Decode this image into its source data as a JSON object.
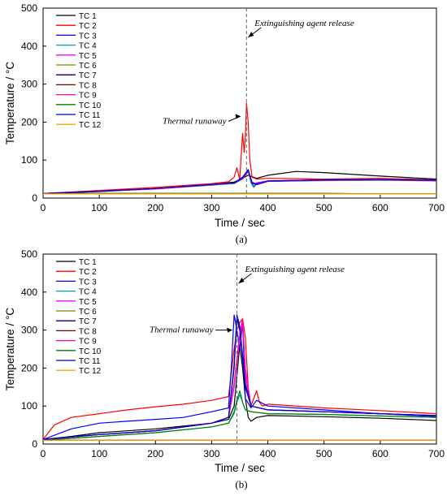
{
  "chart_data": [
    {
      "type": "line",
      "panel_caption": "(a)",
      "xlabel": "Time / sec",
      "ylabel": "Temperature / °C",
      "xlim": [
        0,
        700
      ],
      "ylim": [
        0,
        500
      ],
      "xticks": [
        0,
        100,
        200,
        300,
        400,
        500,
        600,
        700
      ],
      "yticks": [
        0,
        100,
        200,
        300,
        400,
        500
      ],
      "grid": false,
      "legend_position": "top-left",
      "annotations": [
        {
          "text": "Extinguishing agent release",
          "x": 362
        },
        {
          "text": "Thermal runaway",
          "x": 355,
          "y": 215
        }
      ],
      "series": [
        {
          "name": "TC 1",
          "color": "#000000",
          "x": [
            0,
            100,
            200,
            300,
            340,
            355,
            365,
            380,
            400,
            450,
            500,
            600,
            700
          ],
          "y": [
            12,
            17,
            25,
            36,
            42,
            52,
            60,
            52,
            60,
            70,
            67,
            58,
            50
          ]
        },
        {
          "name": "TC 2",
          "color": "#ff0000",
          "x": [
            0,
            100,
            200,
            300,
            330,
            340,
            345,
            350,
            352,
            355,
            358,
            360,
            362,
            365,
            368,
            372,
            380,
            400,
            500,
            600,
            700
          ],
          "y": [
            12,
            20,
            28,
            38,
            43,
            55,
            80,
            48,
            100,
            170,
            120,
            160,
            250,
            200,
            100,
            55,
            50,
            52,
            50,
            52,
            48
          ]
        },
        {
          "name": "TC 3",
          "color": "#0000ff",
          "x": [
            0,
            100,
            200,
            300,
            340,
            355,
            365,
            370,
            375,
            380,
            400,
            500,
            600,
            700
          ],
          "y": [
            12,
            18,
            25,
            36,
            40,
            55,
            75,
            45,
            30,
            40,
            45,
            48,
            48,
            46
          ]
        },
        {
          "name": "TC 4",
          "color": "#00a0a0",
          "x": [
            0,
            100,
            200,
            300,
            340,
            355,
            365,
            370,
            375,
            380,
            400,
            500,
            600,
            700
          ],
          "y": [
            12,
            18,
            24,
            34,
            38,
            50,
            70,
            40,
            28,
            38,
            44,
            46,
            47,
            45
          ]
        },
        {
          "name": "TC 5",
          "color": "#ff00ff",
          "x": [
            0,
            100,
            200,
            300,
            340,
            355,
            365,
            372,
            380,
            400,
            500,
            600,
            700
          ],
          "y": [
            12,
            18,
            25,
            36,
            40,
            52,
            72,
            42,
            38,
            45,
            48,
            49,
            47
          ]
        },
        {
          "name": "TC 6",
          "color": "#808000",
          "x": [
            0,
            100,
            200,
            300,
            400,
            500,
            600,
            700
          ],
          "y": [
            12,
            12,
            12,
            12,
            12,
            12,
            11,
            11
          ]
        },
        {
          "name": "TC 7",
          "color": "#000080",
          "x": [
            0,
            100,
            200,
            300,
            340,
            355,
            365,
            372,
            380,
            400,
            500,
            600,
            700
          ],
          "y": [
            12,
            18,
            25,
            35,
            40,
            52,
            73,
            40,
            35,
            44,
            47,
            48,
            46
          ]
        },
        {
          "name": "TC 8",
          "color": "#800000",
          "x": [
            0,
            100,
            200,
            300,
            400,
            500,
            600,
            700
          ],
          "y": [
            12,
            12,
            12,
            12,
            12,
            12,
            11,
            11
          ]
        },
        {
          "name": "TC 9",
          "color": "#ff00aa",
          "x": [
            0,
            100,
            200,
            300,
            340,
            355,
            365,
            372,
            380,
            400,
            500,
            600,
            700
          ],
          "y": [
            12,
            18,
            24,
            35,
            39,
            51,
            70,
            41,
            36,
            44,
            47,
            48,
            46
          ]
        },
        {
          "name": "TC 10",
          "color": "#008000",
          "x": [
            0,
            100,
            200,
            300,
            400,
            500,
            600,
            700
          ],
          "y": [
            12,
            12,
            12,
            12,
            12,
            12,
            11,
            11
          ]
        },
        {
          "name": "TC 11",
          "color": "#0000cc",
          "x": [
            0,
            100,
            200,
            300,
            340,
            355,
            365,
            372,
            380,
            400,
            500,
            600,
            700
          ],
          "y": [
            12,
            18,
            25,
            36,
            40,
            53,
            74,
            40,
            36,
            45,
            48,
            49,
            47
          ]
        },
        {
          "name": "TC 12",
          "color": "#ffa500",
          "x": [
            0,
            100,
            200,
            300,
            400,
            500,
            600,
            700
          ],
          "y": [
            11,
            11,
            11,
            11,
            11,
            11,
            11,
            11
          ]
        }
      ]
    },
    {
      "type": "line",
      "panel_caption": "(b)",
      "xlabel": "Time / sec",
      "ylabel": "Temperature / °C",
      "xlim": [
        0,
        700
      ],
      "ylim": [
        0,
        500
      ],
      "xticks": [
        0,
        100,
        200,
        300,
        400,
        500,
        600,
        700
      ],
      "yticks": [
        0,
        100,
        200,
        300,
        400,
        500
      ],
      "grid": false,
      "legend_position": "top-left",
      "annotations": [
        {
          "text": "Extinguishing agent release",
          "x": 345
        },
        {
          "text": "Thermal runaway",
          "x": 340,
          "y": 300
        }
      ],
      "series": [
        {
          "name": "TC 1",
          "color": "#000000",
          "x": [
            0,
            50,
            100,
            200,
            300,
            330,
            340,
            345,
            350,
            355,
            360,
            365,
            370,
            380,
            400,
            500,
            600,
            700
          ],
          "y": [
            12,
            20,
            30,
            40,
            55,
            65,
            100,
            180,
            260,
            200,
            120,
            70,
            60,
            70,
            75,
            72,
            68,
            62
          ]
        },
        {
          "name": "TC 2",
          "color": "#ff0000",
          "x": [
            0,
            20,
            50,
            100,
            150,
            200,
            250,
            300,
            330,
            340,
            345,
            350,
            355,
            360,
            365,
            370,
            380,
            385,
            390,
            400,
            500,
            600,
            700
          ],
          "y": [
            12,
            50,
            70,
            80,
            90,
            98,
            105,
            115,
            125,
            250,
            300,
            320,
            330,
            280,
            150,
            100,
            140,
            110,
            100,
            105,
            95,
            88,
            80
          ]
        },
        {
          "name": "TC 3",
          "color": "#0000ff",
          "x": [
            0,
            50,
            100,
            150,
            200,
            250,
            300,
            330,
            335,
            340,
            345,
            350,
            355,
            360,
            370,
            380,
            400,
            500,
            600,
            700
          ],
          "y": [
            12,
            40,
            55,
            60,
            65,
            70,
            85,
            95,
            200,
            340,
            300,
            250,
            320,
            120,
            95,
            115,
            100,
            90,
            80,
            72
          ]
        },
        {
          "name": "TC 4",
          "color": "#00a0a0",
          "x": [
            0,
            100,
            200,
            300,
            330,
            340,
            345,
            350,
            355,
            360,
            370,
            400,
            500,
            600,
            700
          ],
          "y": [
            10,
            20,
            30,
            45,
            55,
            80,
            110,
            130,
            110,
            90,
            85,
            80,
            78,
            74,
            70
          ]
        },
        {
          "name": "TC 5",
          "color": "#ff00ff",
          "x": [
            0,
            100,
            200,
            300,
            330,
            340,
            350,
            355,
            360,
            370,
            400,
            500,
            600,
            700
          ],
          "y": [
            12,
            25,
            35,
            55,
            70,
            150,
            280,
            320,
            200,
            100,
            90,
            85,
            80,
            75
          ]
        },
        {
          "name": "TC 6",
          "color": "#808000",
          "x": [
            0,
            100,
            200,
            300,
            400,
            500,
            600,
            700
          ],
          "y": [
            10,
            10,
            10,
            10,
            10,
            10,
            10,
            10
          ]
        },
        {
          "name": "TC 7",
          "color": "#000080",
          "x": [
            0,
            100,
            200,
            300,
            330,
            340,
            345,
            350,
            360,
            370,
            400,
            500,
            600,
            700
          ],
          "y": [
            12,
            25,
            35,
            55,
            70,
            200,
            330,
            300,
            150,
            100,
            90,
            85,
            80,
            75
          ]
        },
        {
          "name": "TC 8",
          "color": "#800000",
          "x": [
            0,
            100,
            200,
            300,
            400,
            500,
            600,
            700
          ],
          "y": [
            10,
            10,
            10,
            10,
            10,
            10,
            10,
            10
          ]
        },
        {
          "name": "TC 9",
          "color": "#ff00aa",
          "x": [
            0,
            100,
            200,
            300,
            330,
            340,
            350,
            355,
            360,
            370,
            400,
            500,
            600,
            700
          ],
          "y": [
            12,
            25,
            35,
            55,
            70,
            160,
            290,
            330,
            180,
            100,
            90,
            85,
            80,
            75
          ]
        },
        {
          "name": "TC 10",
          "color": "#008000",
          "x": [
            0,
            100,
            200,
            300,
            330,
            340,
            345,
            350,
            355,
            360,
            370,
            400,
            500,
            600,
            700
          ],
          "y": [
            10,
            20,
            30,
            45,
            55,
            85,
            115,
            140,
            110,
            90,
            85,
            80,
            78,
            74,
            70
          ]
        },
        {
          "name": "TC 11",
          "color": "#0000cc",
          "x": [
            0,
            100,
            200,
            300,
            330,
            340,
            345,
            350,
            360,
            370,
            400,
            500,
            600,
            700
          ],
          "y": [
            12,
            25,
            35,
            55,
            70,
            210,
            340,
            310,
            160,
            100,
            90,
            85,
            80,
            75
          ]
        },
        {
          "name": "TC 12",
          "color": "#ffa500",
          "x": [
            0,
            100,
            200,
            300,
            400,
            500,
            600,
            700
          ],
          "y": [
            10,
            10,
            10,
            10,
            10,
            10,
            10,
            10
          ]
        }
      ]
    }
  ]
}
